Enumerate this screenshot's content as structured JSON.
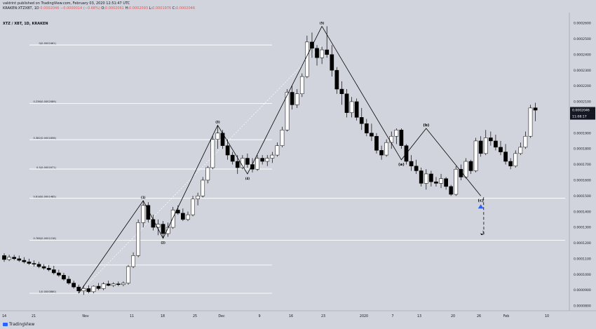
{
  "header": {
    "author_line": "valdrin​t published on TradingView.com, February 03, 2020 12:51:47 UTC",
    "symbol_line": "KRAKEN:XTZXBT, 1D",
    "change": "0.0002046 −0.0000014 (−0.68%)",
    "ohlc": {
      "o_label": "O:",
      "o": "0.0002061",
      "h_label": "H:",
      "h": "0.0002093",
      "l_label": "L:",
      "l": "0.0001976",
      "c_label": "C:",
      "c": "0.0002046"
    },
    "pair_line": "XTZ / XBT, 1D, KRAKEN"
  },
  "branding": {
    "logo_text": "TradingView"
  },
  "colors": {
    "background": "#d1d4dc",
    "bull_candle": "#ffffff",
    "bear_candle": "#000000",
    "fib_line": "#ffffff",
    "wave_line": "#000000",
    "arrow_marker": "#2962ff",
    "price_tag": "#131722"
  },
  "price_axis": {
    "ticks": [
      "0.0002600",
      "0.0002500",
      "0.0002400",
      "0.0002300",
      "0.0002200",
      "0.0002100",
      "0.0002000",
      "0.0001900",
      "0.0001800",
      "0.0001700",
      "0.0001600",
      "0.0001500",
      "0.0001400",
      "0.0001300",
      "0.0001200",
      "0.0001100",
      "0.0001000",
      "0.0000900",
      "0.0000800"
    ],
    "last_price": "0.0002046",
    "countdown": "11:08:17"
  },
  "time_axis": {
    "labels": [
      "14",
      "21",
      "Nov",
      "11",
      "18",
      "25",
      "Dec",
      "9",
      "16",
      "23",
      "2020",
      "7",
      "13",
      "20",
      "26",
      "Feb",
      "10"
    ]
  },
  "chart_data": {
    "type": "candlestick",
    "title": "XTZ / XBT, 1D, KRAKEN",
    "ylim": [
      8e-05,
      0.00026
    ],
    "candles": [
      {
        "o": 0.000112,
        "h": 0.0001135,
        "l": 0.000108,
        "c": 0.0001095
      },
      {
        "o": 0.0001095,
        "h": 0.0001125,
        "l": 0.0001085,
        "c": 0.000111
      },
      {
        "o": 0.000111,
        "h": 0.0001125,
        "l": 0.000109,
        "c": 0.00011
      },
      {
        "o": 0.00011,
        "h": 0.000112,
        "l": 0.000108,
        "c": 0.000109
      },
      {
        "o": 0.000109,
        "h": 0.000111,
        "l": 0.000107,
        "c": 0.000108
      },
      {
        "o": 0.000108,
        "h": 0.00011,
        "l": 0.000106,
        "c": 0.000107
      },
      {
        "o": 0.000107,
        "h": 0.000109,
        "l": 0.000105,
        "c": 0.0001065
      },
      {
        "o": 0.0001065,
        "h": 0.000108,
        "l": 0.000104,
        "c": 0.000105
      },
      {
        "o": 0.000105,
        "h": 0.0001065,
        "l": 0.000103,
        "c": 0.000104
      },
      {
        "o": 0.000104,
        "h": 0.000106,
        "l": 0.000102,
        "c": 0.000103
      },
      {
        "o": 0.000103,
        "h": 0.0001055,
        "l": 0.0001,
        "c": 0.000101
      },
      {
        "o": 0.000101,
        "h": 0.000103,
        "l": 9.85e-05,
        "c": 9.95e-05
      },
      {
        "o": 9.95e-05,
        "h": 0.000101,
        "l": 9.6e-05,
        "c": 9.7e-05
      },
      {
        "o": 9.7e-05,
        "h": 9.9e-05,
        "l": 9.35e-05,
        "c": 9.45e-05
      },
      {
        "o": 9.45e-05,
        "h": 9.6e-05,
        "l": 9.1e-05,
        "c": 9.2e-05
      },
      {
        "o": 9.2e-05,
        "h": 9.35e-05,
        "l": 8.8e-05,
        "c": 8.95e-05
      },
      {
        "o": 8.95e-05,
        "h": 9.3e-05,
        "l": 8.7e-05,
        "c": 9.1e-05
      },
      {
        "o": 9.1e-05,
        "h": 9.3e-05,
        "l": 8.8e-05,
        "c": 8.9e-05
      },
      {
        "o": 8.9e-05,
        "h": 9.3e-05,
        "l": 8.8e-05,
        "c": 9.25e-05
      },
      {
        "o": 9.25e-05,
        "h": 9.45e-05,
        "l": 9e-05,
        "c": 9.1e-05
      },
      {
        "o": 9.1e-05,
        "h": 9.5e-05,
        "l": 9e-05,
        "c": 9.4e-05
      },
      {
        "o": 9.4e-05,
        "h": 9.6e-05,
        "l": 9.25e-05,
        "c": 9.3e-05
      },
      {
        "o": 9.3e-05,
        "h": 9.5e-05,
        "l": 9.2e-05,
        "c": 9.4e-05
      },
      {
        "o": 9.4e-05,
        "h": 9.55e-05,
        "l": 9.25e-05,
        "c": 9.35e-05
      },
      {
        "o": 9.35e-05,
        "h": 9.55e-05,
        "l": 9.25e-05,
        "c": 9.45e-05
      },
      {
        "o": 9.45e-05,
        "h": 0.000106,
        "l": 9.35e-05,
        "c": 0.000105
      },
      {
        "o": 0.000105,
        "h": 0.000114,
        "l": 0.000104,
        "c": 0.000112
      },
      {
        "o": 0.000112,
        "h": 0.000135,
        "l": 0.000111,
        "c": 0.000133
      },
      {
        "o": 0.000133,
        "h": 0.000147,
        "l": 0.00013,
        "c": 0.000144
      },
      {
        "o": 0.000144,
        "h": 0.000146,
        "l": 0.000133,
        "c": 0.000135
      },
      {
        "o": 0.000135,
        "h": 0.000138,
        "l": 0.000128,
        "c": 0.00013
      },
      {
        "o": 0.00013,
        "h": 0.000135,
        "l": 0.000125,
        "c": 0.000132
      },
      {
        "o": 0.000132,
        "h": 0.000134,
        "l": 0.000123,
        "c": 0.000126
      },
      {
        "o": 0.000126,
        "h": 0.000133,
        "l": 0.000124,
        "c": 0.00013
      },
      {
        "o": 0.00013,
        "h": 0.000143,
        "l": 0.000129,
        "c": 0.000141
      },
      {
        "o": 0.000141,
        "h": 0.000144,
        "l": 0.000138,
        "c": 0.000139
      },
      {
        "o": 0.000139,
        "h": 0.000142,
        "l": 0.000134,
        "c": 0.000135
      },
      {
        "o": 0.000135,
        "h": 0.00014,
        "l": 0.000134,
        "c": 0.000138
      },
      {
        "o": 0.000138,
        "h": 0.00015,
        "l": 0.000137,
        "c": 0.000148
      },
      {
        "o": 0.000148,
        "h": 0.000152,
        "l": 0.000144,
        "c": 0.00015
      },
      {
        "o": 0.00015,
        "h": 0.000162,
        "l": 0.000149,
        "c": 0.00016
      },
      {
        "o": 0.00016,
        "h": 0.000169,
        "l": 0.000158,
        "c": 0.000168
      },
      {
        "o": 0.000168,
        "h": 0.000188,
        "l": 0.000167,
        "c": 0.000186
      },
      {
        "o": 0.000186,
        "h": 0.000195,
        "l": 0.00018,
        "c": 0.00019
      },
      {
        "o": 0.00019,
        "h": 0.000192,
        "l": 0.00018,
        "c": 0.000182
      },
      {
        "o": 0.000182,
        "h": 0.000186,
        "l": 0.000173,
        "c": 0.000176
      },
      {
        "o": 0.000176,
        "h": 0.000178,
        "l": 0.00017,
        "c": 0.000172
      },
      {
        "o": 0.000172,
        "h": 0.000176,
        "l": 0.000164,
        "c": 0.000168
      },
      {
        "o": 0.000168,
        "h": 0.000176,
        "l": 0.000167,
        "c": 0.000174
      },
      {
        "o": 0.000174,
        "h": 0.000177,
        "l": 0.000168,
        "c": 0.00017
      },
      {
        "o": 0.00017,
        "h": 0.000174,
        "l": 0.000165,
        "c": 0.000167
      },
      {
        "o": 0.000167,
        "h": 0.000176,
        "l": 0.000166,
        "c": 0.000174
      },
      {
        "o": 0.000174,
        "h": 0.000176,
        "l": 0.00017,
        "c": 0.000172
      },
      {
        "o": 0.000172,
        "h": 0.000176,
        "l": 0.000169,
        "c": 0.000174
      },
      {
        "o": 0.000174,
        "h": 0.000178,
        "l": 0.000171,
        "c": 0.000176
      },
      {
        "o": 0.000176,
        "h": 0.000184,
        "l": 0.000175,
        "c": 0.000182
      },
      {
        "o": 0.000182,
        "h": 0.000194,
        "l": 0.000181,
        "c": 0.000192
      },
      {
        "o": 0.000192,
        "h": 0.000218,
        "l": 0.000191,
        "c": 0.000216
      },
      {
        "o": 0.000216,
        "h": 0.00022,
        "l": 0.000205,
        "c": 0.000208
      },
      {
        "o": 0.000208,
        "h": 0.000218,
        "l": 0.000206,
        "c": 0.000215
      },
      {
        "o": 0.000215,
        "h": 0.000228,
        "l": 0.000213,
        "c": 0.000226
      },
      {
        "o": 0.000226,
        "h": 0.000252,
        "l": 0.000225,
        "c": 0.000248
      },
      {
        "o": 0.000248,
        "h": 0.000254,
        "l": 0.000238,
        "c": 0.000244
      },
      {
        "o": 0.000244,
        "h": 0.000246,
        "l": 0.000233,
        "c": 0.000238
      },
      {
        "o": 0.000238,
        "h": 0.000245,
        "l": 0.000234,
        "c": 0.000243
      },
      {
        "o": 0.000243,
        "h": 0.000258,
        "l": 0.000238,
        "c": 0.00024
      },
      {
        "o": 0.00024,
        "h": 0.000246,
        "l": 0.000226,
        "c": 0.00023
      },
      {
        "o": 0.00023,
        "h": 0.000232,
        "l": 0.000215,
        "c": 0.000218
      },
      {
        "o": 0.000218,
        "h": 0.000223,
        "l": 0.000208,
        "c": 0.000215
      },
      {
        "o": 0.000215,
        "h": 0.000218,
        "l": 0.0002,
        "c": 0.000203
      },
      {
        "o": 0.000203,
        "h": 0.000213,
        "l": 0.0002,
        "c": 0.00021
      },
      {
        "o": 0.00021,
        "h": 0.000212,
        "l": 0.000198,
        "c": 0.0002
      },
      {
        "o": 0.0002,
        "h": 0.000206,
        "l": 0.000192,
        "c": 0.000196
      },
      {
        "o": 0.000196,
        "h": 0.000199,
        "l": 0.000188,
        "c": 0.00019
      },
      {
        "o": 0.00019,
        "h": 0.000196,
        "l": 0.000185,
        "c": 0.000188
      },
      {
        "o": 0.000188,
        "h": 0.00019,
        "l": 0.000177,
        "c": 0.000179
      },
      {
        "o": 0.000179,
        "h": 0.000182,
        "l": 0.000173,
        "c": 0.000176
      },
      {
        "o": 0.000176,
        "h": 0.000186,
        "l": 0.000175,
        "c": 0.000184
      },
      {
        "o": 0.000184,
        "h": 0.000191,
        "l": 0.00018,
        "c": 0.000188
      },
      {
        "o": 0.000188,
        "h": 0.000193,
        "l": 0.000183,
        "c": 0.000192
      },
      {
        "o": 0.000192,
        "h": 0.000193,
        "l": 0.00018,
        "c": 0.000182
      },
      {
        "o": 0.000182,
        "h": 0.000183,
        "l": 0.00017,
        "c": 0.000172
      },
      {
        "o": 0.000172,
        "h": 0.000176,
        "l": 0.000166,
        "c": 0.000169
      },
      {
        "o": 0.000169,
        "h": 0.000173,
        "l": 0.000164,
        "c": 0.000166
      },
      {
        "o": 0.000166,
        "h": 0.000168,
        "l": 0.000156,
        "c": 0.000158
      },
      {
        "o": 0.000158,
        "h": 0.000167,
        "l": 0.000154,
        "c": 0.000164
      },
      {
        "o": 0.000164,
        "h": 0.000166,
        "l": 0.000156,
        "c": 0.000159
      },
      {
        "o": 0.000159,
        "h": 0.000162,
        "l": 0.000156,
        "c": 0.000158
      },
      {
        "o": 0.000158,
        "h": 0.000164,
        "l": 0.000155,
        "c": 0.000161
      },
      {
        "o": 0.000161,
        "h": 0.000162,
        "l": 0.000154,
        "c": 0.000156
      },
      {
        "o": 0.000156,
        "h": 0.000157,
        "l": 0.00015,
        "c": 0.000151
      },
      {
        "o": 0.000151,
        "h": 0.000169,
        "l": 0.00015,
        "c": 0.000167
      },
      {
        "o": 0.000167,
        "h": 0.00017,
        "l": 0.00016,
        "c": 0.000162
      },
      {
        "o": 0.000162,
        "h": 0.000174,
        "l": 0.000161,
        "c": 0.000172
      },
      {
        "o": 0.000172,
        "h": 0.000173,
        "l": 0.000164,
        "c": 0.000166
      },
      {
        "o": 0.000166,
        "h": 0.000187,
        "l": 0.000165,
        "c": 0.000185
      },
      {
        "o": 0.000185,
        "h": 0.000188,
        "l": 0.000175,
        "c": 0.000177
      },
      {
        "o": 0.000177,
        "h": 0.000192,
        "l": 0.000176,
        "c": 0.000187
      },
      {
        "o": 0.000187,
        "h": 0.000191,
        "l": 0.000182,
        "c": 0.000185
      },
      {
        "o": 0.000185,
        "h": 0.000189,
        "l": 0.000179,
        "c": 0.000181
      },
      {
        "o": 0.000181,
        "h": 0.000185,
        "l": 0.000176,
        "c": 0.000178
      },
      {
        "o": 0.000178,
        "h": 0.000183,
        "l": 0.00017,
        "c": 0.000172
      },
      {
        "o": 0.000172,
        "h": 0.000174,
        "l": 0.000167,
        "c": 0.000169
      },
      {
        "o": 0.000169,
        "h": 0.000179,
        "l": 0.000168,
        "c": 0.000177
      },
      {
        "o": 0.000177,
        "h": 0.000184,
        "l": 0.000176,
        "c": 0.000181
      },
      {
        "o": 0.000181,
        "h": 0.000191,
        "l": 0.00018,
        "c": 0.000188
      },
      {
        "o": 0.000188,
        "h": 0.000208,
        "l": 0.000187,
        "c": 0.000206
      },
      {
        "o": 0.0002061,
        "h": 0.0002093,
        "l": 0.0001976,
        "c": 0.0002046
      }
    ],
    "fib_levels": [
      {
        "label": "0(0.0002461)",
        "price": 0.0002461
      },
      {
        "label": "0.236(0.0002089)",
        "price": 0.0002089
      },
      {
        "label": "0.382(0.0001858)",
        "price": 0.0001858
      },
      {
        "label": "0.5(0.0001671)",
        "price": 0.0001671
      },
      {
        "label": "0.618(0.0001485)",
        "price": 0.0001485
      },
      {
        "label": "0.786(0.0001218)",
        "price": 0.0001218
      },
      {
        "label": "1(0.0000880)",
        "price": 8.8e-05
      }
    ],
    "extra_levels": [
      {
        "price": 0.000106
      }
    ],
    "wave_labels": [
      {
        "label": "(1)",
        "bar": 28,
        "price": 0.000147
      },
      {
        "label": "(2)",
        "bar": 32,
        "price": 0.000123
      },
      {
        "label": "(3)",
        "bar": 43,
        "price": 0.000195
      },
      {
        "label": "(4)",
        "bar": 49,
        "price": 0.000164
      },
      {
        "label": "(5)",
        "bar": 64,
        "price": 0.000258
      },
      {
        "label": "(a)",
        "bar": 80,
        "price": 0.000173
      },
      {
        "label": "(b)",
        "bar": 85,
        "price": 0.000193
      },
      {
        "label": "(c)",
        "bar": 96,
        "price": 0.00015
      }
    ],
    "future_label": "1"
  }
}
